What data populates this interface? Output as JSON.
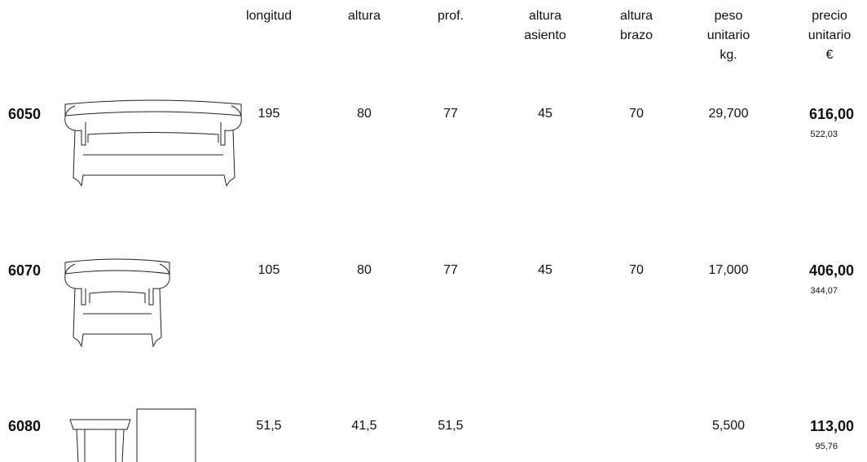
{
  "header": {
    "columns": [
      [
        "longitud"
      ],
      [
        "altura"
      ],
      [
        "prof."
      ],
      [
        "altura",
        "asiento"
      ],
      [
        "altura",
        "brazo"
      ],
      [
        "peso",
        "unitario",
        "kg."
      ],
      [
        "precio",
        "unitario",
        "€"
      ]
    ]
  },
  "table": {
    "rows": [
      {
        "code": "6050",
        "values": [
          "195",
          "80",
          "77",
          "45",
          "70",
          "29,700"
        ],
        "price": "616,00",
        "price_net": "522,03"
      },
      {
        "code": "6070",
        "values": [
          "105",
          "80",
          "77",
          "45",
          "70",
          "17,000"
        ],
        "price": "406,00",
        "price_net": "344,07"
      },
      {
        "code": "6080",
        "values": [
          "51,5",
          "41,5",
          "51,5",
          null,
          null,
          "5,500"
        ],
        "price": "113,00",
        "price_net": "95,76"
      }
    ]
  }
}
